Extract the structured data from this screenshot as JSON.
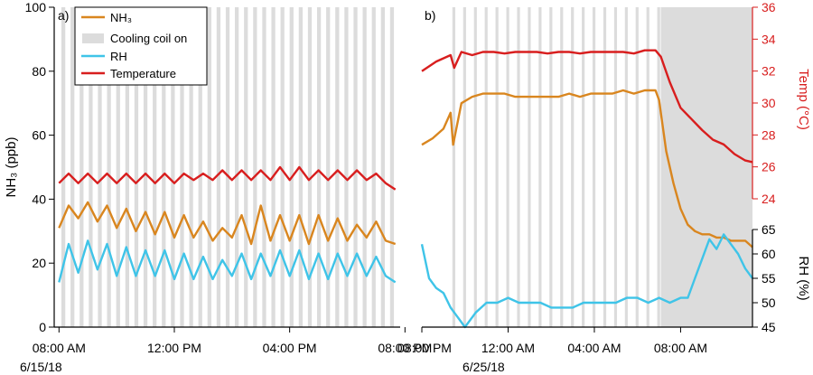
{
  "figure": {
    "colors": {
      "nh3": "#d9861f",
      "rh": "#3fc4e8",
      "temperature": "#d81e1e",
      "cooling": "#dcdcdc",
      "axis": "#000000",
      "temp_axis": "#d81e1e"
    }
  },
  "chart_data": [
    {
      "type": "line",
      "panel_label": "a)",
      "ylabel": "NH₃ (ppb)",
      "ylim": [
        0,
        100
      ],
      "yticks": [
        "0",
        "20",
        "40",
        "60",
        "80",
        "100"
      ],
      "xlim": [
        "2018-06-15 07:50",
        "2018-06-15 19:50"
      ],
      "xticks": [
        "08:00 AM",
        "12:00 PM",
        "04:00 PM",
        "08:00 PM"
      ],
      "xtick_values": [
        "2018-06-15 08:00",
        "2018-06-15 12:00",
        "2018-06-15 16:00",
        "2018-06-15 20:00"
      ],
      "date_label": "6/15/18",
      "grid": false,
      "legend": {
        "placement": "top-left",
        "entries": [
          {
            "label": "NH₃",
            "series": "NH3"
          },
          {
            "label": "Cooling coil on",
            "series": "cooling"
          },
          {
            "label": "RH",
            "series": "RH"
          },
          {
            "label": "Temperature",
            "series": "Temperature"
          }
        ]
      },
      "cooling_coil_on": [
        [
          "08:05",
          "08:13"
        ],
        [
          "08:24",
          "08:32"
        ],
        [
          "08:43",
          "08:51"
        ],
        [
          "09:02",
          "09:10"
        ],
        [
          "09:21",
          "09:29"
        ],
        [
          "09:40",
          "09:48"
        ],
        [
          "09:59",
          "10:07"
        ],
        [
          "10:18",
          "10:26"
        ],
        [
          "10:37",
          "10:45"
        ],
        [
          "10:56",
          "11:04"
        ],
        [
          "11:15",
          "11:23"
        ],
        [
          "11:34",
          "11:42"
        ],
        [
          "11:53",
          "12:01"
        ],
        [
          "12:12",
          "12:20"
        ],
        [
          "12:31",
          "12:39"
        ],
        [
          "12:50",
          "12:58"
        ],
        [
          "13:09",
          "13:17"
        ],
        [
          "13:28",
          "13:36"
        ],
        [
          "13:47",
          "13:55"
        ],
        [
          "14:06",
          "14:14"
        ],
        [
          "14:25",
          "14:33"
        ],
        [
          "14:44",
          "14:52"
        ],
        [
          "15:03",
          "15:11"
        ],
        [
          "15:22",
          "15:30"
        ],
        [
          "15:41",
          "15:49"
        ],
        [
          "16:00",
          "16:08"
        ],
        [
          "16:19",
          "16:27"
        ],
        [
          "16:38",
          "16:46"
        ],
        [
          "16:57",
          "17:05"
        ],
        [
          "17:16",
          "17:24"
        ],
        [
          "17:35",
          "17:43"
        ],
        [
          "17:54",
          "18:02"
        ],
        [
          "18:13",
          "18:21"
        ],
        [
          "18:32",
          "18:40"
        ],
        [
          "18:51",
          "18:59"
        ],
        [
          "19:10",
          "19:18"
        ],
        [
          "19:29",
          "19:37"
        ]
      ],
      "series": [
        {
          "name": "NH3",
          "axis": "left",
          "x": [
            "08:00",
            "08:20",
            "08:40",
            "09:00",
            "09:20",
            "09:40",
            "10:00",
            "10:20",
            "10:40",
            "11:00",
            "11:20",
            "11:40",
            "12:00",
            "12:20",
            "12:40",
            "13:00",
            "13:20",
            "13:40",
            "14:00",
            "14:20",
            "14:40",
            "15:00",
            "15:20",
            "15:40",
            "16:00",
            "16:20",
            "16:40",
            "17:00",
            "17:20",
            "17:40",
            "18:00",
            "18:20",
            "18:40",
            "19:00",
            "19:20",
            "19:40"
          ],
          "values": [
            31,
            38,
            34,
            39,
            33,
            38,
            31,
            37,
            30,
            36,
            29,
            36,
            28,
            35,
            28,
            33,
            27,
            31,
            28,
            35,
            26,
            38,
            27,
            35,
            27,
            35,
            26,
            35,
            27,
            34,
            27,
            32,
            28,
            33,
            27,
            26
          ]
        },
        {
          "name": "RH",
          "axis": "right_a",
          "x": [
            "08:00",
            "08:20",
            "08:40",
            "09:00",
            "09:20",
            "09:40",
            "10:00",
            "10:20",
            "10:40",
            "11:00",
            "11:20",
            "11:40",
            "12:00",
            "12:20",
            "12:40",
            "13:00",
            "13:20",
            "13:40",
            "14:00",
            "14:20",
            "14:40",
            "15:00",
            "15:20",
            "15:40",
            "16:00",
            "16:20",
            "16:40",
            "17:00",
            "17:20",
            "17:40",
            "18:00",
            "18:20",
            "18:40",
            "19:00",
            "19:20",
            "19:40"
          ],
          "values": [
            14,
            26,
            17,
            27,
            18,
            26,
            16,
            25,
            16,
            24,
            16,
            24,
            15,
            23,
            15,
            22,
            15,
            21,
            16,
            23,
            15,
            23,
            16,
            24,
            16,
            24,
            15,
            23,
            15,
            23,
            16,
            23,
            16,
            22,
            16,
            14
          ]
        },
        {
          "name": "Temperature",
          "axis": "right_a",
          "x": [
            "08:00",
            "08:20",
            "08:40",
            "09:00",
            "09:20",
            "09:40",
            "10:00",
            "10:20",
            "10:40",
            "11:00",
            "11:20",
            "11:40",
            "12:00",
            "12:20",
            "12:40",
            "13:00",
            "13:20",
            "13:40",
            "14:00",
            "14:20",
            "14:40",
            "15:00",
            "15:20",
            "15:40",
            "16:00",
            "16:20",
            "16:40",
            "17:00",
            "17:20",
            "17:40",
            "18:00",
            "18:20",
            "18:40",
            "19:00",
            "19:20",
            "19:40"
          ],
          "values": [
            45,
            48,
            45,
            48,
            45,
            48,
            45,
            48,
            45,
            48,
            45,
            48,
            45,
            48,
            46,
            48,
            46,
            49,
            46,
            49,
            46,
            49,
            46,
            50,
            46,
            50,
            46,
            49,
            46,
            49,
            46,
            49,
            46,
            48,
            45,
            43
          ]
        }
      ]
    },
    {
      "type": "line",
      "panel_label": "b)",
      "xlim": [
        "2018-06-24 20:00",
        "2018-06-25 11:20"
      ],
      "xticks": [
        "08:00 PM",
        "12:00 AM",
        "04:00 AM",
        "08:00 AM"
      ],
      "xtick_values": [
        "2018-06-24 20:00",
        "2018-06-25 00:00",
        "2018-06-25 04:00",
        "2018-06-25 08:00"
      ],
      "date_label": "6/25/18",
      "grid": false,
      "temp_axis": {
        "ylabel": "Temp (°C)",
        "ylim": [
          24,
          36
        ],
        "yticks": [
          "24",
          "26",
          "28",
          "30",
          "32",
          "34",
          "36"
        ]
      },
      "rh_axis": {
        "ylabel": "RH (%)",
        "ylim": [
          45,
          65
        ],
        "yticks": [
          "45",
          "50",
          "55",
          "60",
          "65"
        ]
      },
      "cooling_coil_on": [
        [
          "2018-06-24 21:25",
          "2018-06-24 21:33"
        ],
        [
          "2018-06-24 21:55",
          "2018-06-24 22:03"
        ],
        [
          "2018-06-24 22:25",
          "2018-06-24 22:33"
        ],
        [
          "2018-06-24 22:55",
          "2018-06-24 23:03"
        ],
        [
          "2018-06-24 23:25",
          "2018-06-24 23:33"
        ],
        [
          "2018-06-24 23:55",
          "2018-06-25 00:03"
        ],
        [
          "2018-06-25 00:25",
          "2018-06-25 00:33"
        ],
        [
          "2018-06-25 00:55",
          "2018-06-25 01:03"
        ],
        [
          "2018-06-25 01:25",
          "2018-06-25 01:33"
        ],
        [
          "2018-06-25 01:55",
          "2018-06-25 02:03"
        ],
        [
          "2018-06-25 02:25",
          "2018-06-25 02:33"
        ],
        [
          "2018-06-25 02:55",
          "2018-06-25 03:03"
        ],
        [
          "2018-06-25 03:25",
          "2018-06-25 03:33"
        ],
        [
          "2018-06-25 03:55",
          "2018-06-25 04:03"
        ],
        [
          "2018-06-25 04:25",
          "2018-06-25 04:33"
        ],
        [
          "2018-06-25 04:55",
          "2018-06-25 05:03"
        ],
        [
          "2018-06-25 05:25",
          "2018-06-25 05:33"
        ],
        [
          "2018-06-25 05:55",
          "2018-06-25 06:03"
        ],
        [
          "2018-06-25 06:25",
          "2018-06-25 06:33"
        ],
        [
          "2018-06-25 06:55",
          "2018-06-25 07:03"
        ],
        [
          "2018-06-25 07:05",
          "2018-06-25 11:20"
        ]
      ],
      "series": [
        {
          "name": "NH3",
          "axis": "left",
          "x": [
            "2018-06-24 20:00",
            "2018-06-24 20:30",
            "2018-06-24 21:00",
            "2018-06-24 21:20",
            "2018-06-24 21:27",
            "2018-06-24 21:50",
            "2018-06-24 22:20",
            "2018-06-24 22:50",
            "2018-06-24 23:20",
            "2018-06-24 23:50",
            "2018-06-25 00:20",
            "2018-06-25 00:50",
            "2018-06-25 01:20",
            "2018-06-25 01:50",
            "2018-06-25 02:20",
            "2018-06-25 02:50",
            "2018-06-25 03:20",
            "2018-06-25 03:50",
            "2018-06-25 04:20",
            "2018-06-25 04:50",
            "2018-06-25 05:20",
            "2018-06-25 05:50",
            "2018-06-25 06:20",
            "2018-06-25 06:50",
            "2018-06-25 07:00",
            "2018-06-25 07:20",
            "2018-06-25 07:40",
            "2018-06-25 08:00",
            "2018-06-25 08:20",
            "2018-06-25 08:40",
            "2018-06-25 09:00",
            "2018-06-25 09:20",
            "2018-06-25 09:40",
            "2018-06-25 10:00",
            "2018-06-25 10:20",
            "2018-06-25 10:40",
            "2018-06-25 11:00",
            "2018-06-25 11:20"
          ],
          "values": [
            57,
            59,
            62,
            67,
            57,
            70,
            72,
            73,
            73,
            73,
            72,
            72,
            72,
            72,
            72,
            73,
            72,
            73,
            73,
            73,
            74,
            73,
            74,
            74,
            71,
            55,
            45,
            37,
            32,
            30,
            29,
            29,
            28,
            28,
            27,
            27,
            27,
            25
          ]
        },
        {
          "name": "Temperature",
          "axis": "temp",
          "x": [
            "2018-06-24 20:00",
            "2018-06-24 20:40",
            "2018-06-24 21:20",
            "2018-06-24 21:30",
            "2018-06-24 21:50",
            "2018-06-24 22:20",
            "2018-06-24 22:50",
            "2018-06-24 23:20",
            "2018-06-24 23:50",
            "2018-06-25 00:20",
            "2018-06-25 00:50",
            "2018-06-25 01:20",
            "2018-06-25 01:50",
            "2018-06-25 02:20",
            "2018-06-25 02:50",
            "2018-06-25 03:20",
            "2018-06-25 03:50",
            "2018-06-25 04:20",
            "2018-06-25 04:50",
            "2018-06-25 05:20",
            "2018-06-25 05:50",
            "2018-06-25 06:20",
            "2018-06-25 06:50",
            "2018-06-25 07:05",
            "2018-06-25 07:30",
            "2018-06-25 08:00",
            "2018-06-25 08:30",
            "2018-06-25 09:00",
            "2018-06-25 09:30",
            "2018-06-25 10:00",
            "2018-06-25 10:30",
            "2018-06-25 11:00",
            "2018-06-25 11:20"
          ],
          "values": [
            32.0,
            32.6,
            33.0,
            32.2,
            33.2,
            33.0,
            33.2,
            33.2,
            33.1,
            33.2,
            33.2,
            33.2,
            33.1,
            33.2,
            33.2,
            33.1,
            33.2,
            33.2,
            33.2,
            33.2,
            33.1,
            33.3,
            33.3,
            32.9,
            31.3,
            29.7,
            29.0,
            28.3,
            27.7,
            27.4,
            26.8,
            26.4,
            26.3
          ]
        },
        {
          "name": "RH",
          "axis": "rh",
          "x": [
            "2018-06-24 20:00",
            "2018-06-24 20:20",
            "2018-06-24 20:40",
            "2018-06-24 21:00",
            "2018-06-24 21:20",
            "2018-06-24 21:40",
            "2018-06-24 22:00",
            "2018-06-24 22:30",
            "2018-06-24 23:00",
            "2018-06-24 23:30",
            "2018-06-25 00:00",
            "2018-06-25 00:30",
            "2018-06-25 01:00",
            "2018-06-25 01:30",
            "2018-06-25 02:00",
            "2018-06-25 02:30",
            "2018-06-25 03:00",
            "2018-06-25 03:30",
            "2018-06-25 04:00",
            "2018-06-25 04:30",
            "2018-06-25 05:00",
            "2018-06-25 05:30",
            "2018-06-25 06:00",
            "2018-06-25 06:30",
            "2018-06-25 07:00",
            "2018-06-25 07:30",
            "2018-06-25 08:00",
            "2018-06-25 08:20",
            "2018-06-25 08:40",
            "2018-06-25 09:00",
            "2018-06-25 09:20",
            "2018-06-25 09:40",
            "2018-06-25 10:00",
            "2018-06-25 10:20",
            "2018-06-25 10:40",
            "2018-06-25 11:00",
            "2018-06-25 11:20"
          ],
          "values": [
            62,
            55,
            53,
            52,
            49,
            47,
            45,
            48,
            50,
            50,
            51,
            50,
            50,
            50,
            49,
            49,
            49,
            50,
            50,
            50,
            50,
            51,
            51,
            50,
            51,
            50,
            51,
            51,
            55,
            59,
            63,
            61,
            64,
            62,
            60,
            57,
            55
          ]
        }
      ]
    }
  ]
}
